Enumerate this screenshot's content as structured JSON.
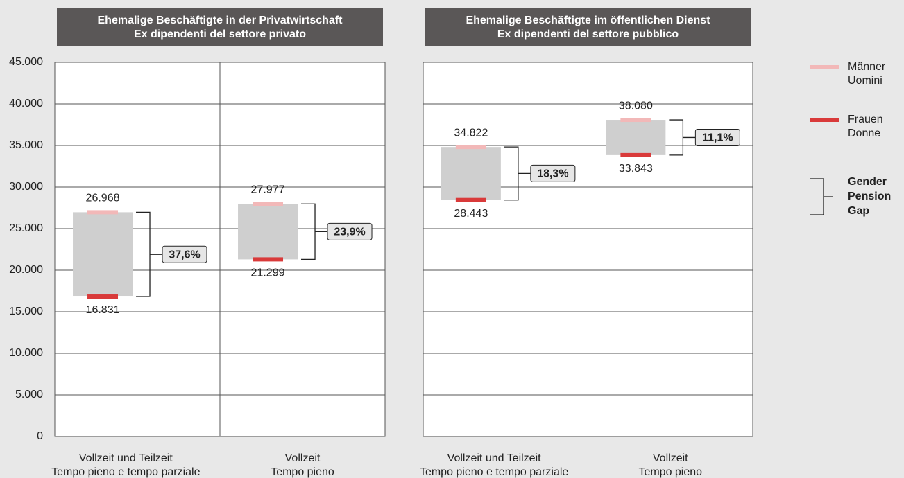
{
  "chart_data": [
    {
      "type": "range",
      "title": "Ehemalige Beschäftigte in der Privatwirtschaft\nEx dipendenti del settore privato",
      "categories": [
        "Vollzeit und Teilzeit\nTempo pieno e tempo parziale",
        "Vollzeit\nTempo pieno"
      ],
      "series": [
        {
          "name": "Männer\nUomini",
          "color": "#f2b8b8",
          "values": [
            26968,
            27977
          ],
          "value_labels": [
            "26.968",
            "27.977"
          ]
        },
        {
          "name": "Frauen\nDonne",
          "color": "#d93a3a",
          "values": [
            16831,
            21299
          ],
          "value_labels": [
            "16.831",
            "21.299"
          ]
        }
      ],
      "gap": {
        "name": "Gender\nPension\nGap",
        "values": [
          37.6,
          23.9
        ],
        "value_labels": [
          "37,6%",
          "23,9%"
        ]
      },
      "ylim": [
        0,
        45000
      ],
      "yticks": [
        0,
        {
          "value": 5000,
          "label": "5.000"
        },
        {
          "value": 10000,
          "label": "10.000"
        },
        {
          "value": 15000,
          "label": "15.000"
        },
        {
          "value": 20000,
          "label": "20.000"
        },
        {
          "value": 25000,
          "label": "25.000"
        },
        {
          "value": 30000,
          "label": "30.000"
        },
        {
          "value": 35000,
          "label": "35.000"
        },
        {
          "value": 40000,
          "label": "40.000"
        },
        {
          "value": 45000,
          "label": "45.000"
        }
      ],
      "grid": true
    },
    {
      "type": "range",
      "title": "Ehemalige Beschäftigte im öffentlichen Dienst\nEx dipendenti del settore pubblico",
      "categories": [
        "Vollzeit und Teilzeit\nTempo pieno e tempo parziale",
        "Vollzeit\nTempo pieno"
      ],
      "series": [
        {
          "values": [
            34822,
            38080
          ],
          "value_labels": [
            "34.822",
            "38.080"
          ],
          "color": "#f2b8b8"
        },
        {
          "values": [
            28443,
            33843
          ],
          "value_labels": [
            "28.443",
            "33.843"
          ],
          "color": "#d93a3a"
        }
      ],
      "gap": {
        "values": [
          18.3,
          11.1
        ],
        "value_labels": [
          "18,3%",
          "11,1%"
        ]
      },
      "ylim": [
        0,
        45000
      ],
      "yticks": [
        0,
        5000,
        10000,
        15000,
        20000,
        25000,
        30000,
        35000,
        40000,
        45000
      ],
      "grid": true
    }
  ]
}
